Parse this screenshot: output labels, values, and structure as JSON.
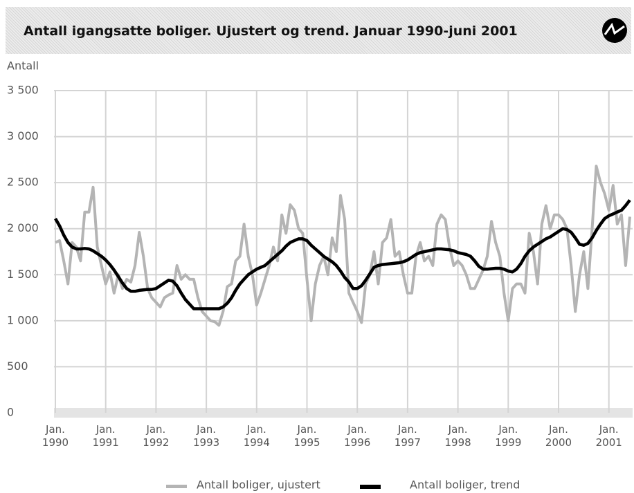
{
  "chart_data": {
    "type": "line",
    "title": "Antall igangsatte boliger. Ujustert og trend. Januar 1990-juni 2001",
    "y_axis_label": "Antall",
    "x": [
      "1990-01",
      "1990-02",
      "1990-03",
      "1990-04",
      "1990-05",
      "1990-06",
      "1990-07",
      "1990-08",
      "1990-09",
      "1990-10",
      "1990-11",
      "1990-12",
      "1991-01",
      "1991-02",
      "1991-03",
      "1991-04",
      "1991-05",
      "1991-06",
      "1991-07",
      "1991-08",
      "1991-09",
      "1991-10",
      "1991-11",
      "1991-12",
      "1992-01",
      "1992-02",
      "1992-03",
      "1992-04",
      "1992-05",
      "1992-06",
      "1992-07",
      "1992-08",
      "1992-09",
      "1992-10",
      "1992-11",
      "1992-12",
      "1993-01",
      "1993-02",
      "1993-03",
      "1993-04",
      "1993-05",
      "1993-06",
      "1993-07",
      "1993-08",
      "1993-09",
      "1993-10",
      "1993-11",
      "1993-12",
      "1994-01",
      "1994-02",
      "1994-03",
      "1994-04",
      "1994-05",
      "1994-06",
      "1994-07",
      "1994-08",
      "1994-09",
      "1994-10",
      "1994-11",
      "1994-12",
      "1995-01",
      "1995-02",
      "1995-03",
      "1995-04",
      "1995-05",
      "1995-06",
      "1995-07",
      "1995-08",
      "1995-09",
      "1995-10",
      "1995-11",
      "1995-12",
      "1996-01",
      "1996-02",
      "1996-03",
      "1996-04",
      "1996-05",
      "1996-06",
      "1996-07",
      "1996-08",
      "1996-09",
      "1996-10",
      "1996-11",
      "1996-12",
      "1997-01",
      "1997-02",
      "1997-03",
      "1997-04",
      "1997-05",
      "1997-06",
      "1997-07",
      "1997-08",
      "1997-09",
      "1997-10",
      "1997-11",
      "1997-12",
      "1998-01",
      "1998-02",
      "1998-03",
      "1998-04",
      "1998-05",
      "1998-06",
      "1998-07",
      "1998-08",
      "1998-09",
      "1998-10",
      "1998-11",
      "1998-12",
      "1999-01",
      "1999-02",
      "1999-03",
      "1999-04",
      "1999-05",
      "1999-06",
      "1999-07",
      "1999-08",
      "1999-09",
      "1999-10",
      "1999-11",
      "1999-12",
      "2000-01",
      "2000-02",
      "2000-03",
      "2000-04",
      "2000-05",
      "2000-06",
      "2000-07",
      "2000-08",
      "2000-09",
      "2000-10",
      "2000-11",
      "2000-12",
      "2001-01",
      "2001-02",
      "2001-03",
      "2001-04",
      "2001-05",
      "2001-06"
    ],
    "series": [
      {
        "name": "Antall boliger, ujustert",
        "color": "#b4b4b4",
        "values": [
          1850,
          1870,
          1650,
          1400,
          1850,
          1800,
          1650,
          2180,
          2180,
          2450,
          1800,
          1600,
          1400,
          1530,
          1300,
          1500,
          1350,
          1450,
          1420,
          1600,
          1960,
          1700,
          1350,
          1250,
          1200,
          1150,
          1250,
          1280,
          1300,
          1600,
          1450,
          1500,
          1450,
          1450,
          1250,
          1100,
          1050,
          1000,
          990,
          950,
          1100,
          1370,
          1400,
          1650,
          1700,
          2050,
          1700,
          1500,
          1170,
          1300,
          1450,
          1600,
          1800,
          1650,
          2150,
          1950,
          2260,
          2200,
          2000,
          1950,
          1450,
          1000,
          1400,
          1600,
          1700,
          1500,
          1900,
          1750,
          2360,
          2100,
          1300,
          1200,
          1100,
          980,
          1400,
          1500,
          1750,
          1400,
          1850,
          1900,
          2100,
          1700,
          1750,
          1500,
          1300,
          1300,
          1700,
          1850,
          1650,
          1700,
          1600,
          2050,
          2150,
          2100,
          1800,
          1600,
          1650,
          1600,
          1500,
          1350,
          1350,
          1450,
          1550,
          1700,
          2080,
          1850,
          1700,
          1300,
          1000,
          1350,
          1400,
          1400,
          1300,
          1950,
          1750,
          1400,
          2050,
          2250,
          2000,
          2150,
          2150,
          2100,
          2000,
          1600,
          1100,
          1500,
          1750,
          1350,
          2000,
          2680,
          2500,
          2380,
          2200,
          2470,
          2050,
          2150,
          1600,
          2130
        ]
      },
      {
        "name": "Antall boliger, trend",
        "color": "#000000",
        "values": [
          2110,
          2030,
          1930,
          1850,
          1800,
          1780,
          1780,
          1785,
          1780,
          1760,
          1730,
          1700,
          1660,
          1610,
          1550,
          1480,
          1410,
          1350,
          1320,
          1320,
          1330,
          1335,
          1340,
          1340,
          1350,
          1380,
          1410,
          1440,
          1430,
          1380,
          1300,
          1230,
          1180,
          1130,
          1130,
          1130,
          1130,
          1130,
          1130,
          1130,
          1150,
          1190,
          1250,
          1330,
          1400,
          1450,
          1500,
          1530,
          1560,
          1580,
          1600,
          1640,
          1680,
          1720,
          1760,
          1810,
          1850,
          1870,
          1890,
          1890,
          1870,
          1820,
          1780,
          1740,
          1700,
          1670,
          1640,
          1600,
          1540,
          1470,
          1420,
          1350,
          1350,
          1380,
          1440,
          1510,
          1580,
          1600,
          1610,
          1615,
          1620,
          1625,
          1630,
          1640,
          1660,
          1690,
          1720,
          1740,
          1750,
          1760,
          1770,
          1780,
          1780,
          1775,
          1770,
          1760,
          1740,
          1730,
          1720,
          1700,
          1650,
          1590,
          1560,
          1560,
          1565,
          1570,
          1570,
          1560,
          1540,
          1530,
          1560,
          1620,
          1700,
          1760,
          1800,
          1830,
          1860,
          1890,
          1910,
          1940,
          1970,
          2000,
          1990,
          1960,
          1900,
          1830,
          1820,
          1840,
          1900,
          1980,
          2050,
          2110,
          2140,
          2160,
          2180,
          2200,
          2250,
          2310
        ]
      }
    ],
    "xlim": [
      "1990-01",
      "2001-06"
    ],
    "xticks": [
      {
        "value": "1990-01",
        "label": "Jan. 1990"
      },
      {
        "value": "1991-01",
        "label": "Jan. 1991"
      },
      {
        "value": "1992-01",
        "label": "Jan. 1992"
      },
      {
        "value": "1993-01",
        "label": "Jan. 1993"
      },
      {
        "value": "1994-01",
        "label": "Jan. 1994"
      },
      {
        "value": "1995-01",
        "label": "Jan. 1995"
      },
      {
        "value": "1996-01",
        "label": "Jan. 1996"
      },
      {
        "value": "1997-01",
        "label": "Jan. 1997"
      },
      {
        "value": "1998-01",
        "label": "Jan. 1998"
      },
      {
        "value": "1999-01",
        "label": "Jan. 1999"
      },
      {
        "value": "2000-01",
        "label": "Jan. 2000"
      },
      {
        "value": "2001-01",
        "label": "Jan. 2001"
      }
    ],
    "ylim": [
      0,
      3500
    ],
    "yticks": [
      0,
      500,
      {
        "value": 1000,
        "label": "1 000"
      },
      {
        "value": 1500,
        "label": "1 500"
      },
      {
        "value": 2000,
        "label": "2 000"
      },
      {
        "value": 2500,
        "label": "2 500"
      },
      {
        "value": 3000,
        "label": "3 000"
      },
      {
        "value": 3500,
        "label": "3 500"
      }
    ],
    "grid": true,
    "legend": "bottom"
  }
}
